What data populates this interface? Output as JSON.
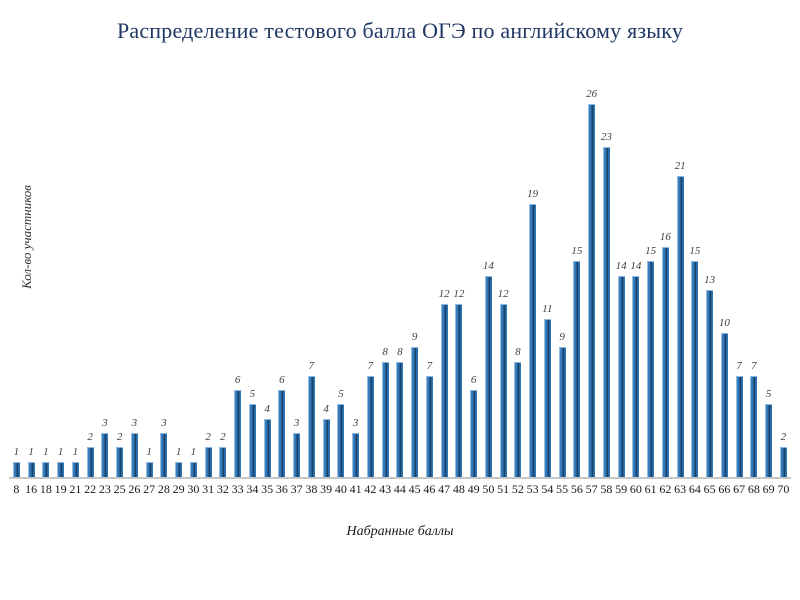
{
  "chart_data": {
    "type": "bar",
    "title": "Распределение тестового балла ОГЭ по английскому языку",
    "xlabel": "Набранные баллы",
    "ylabel": "Кол-во участников",
    "categories": [
      "8",
      "16",
      "18",
      "19",
      "21",
      "22",
      "23",
      "25",
      "26",
      "27",
      "28",
      "29",
      "30",
      "31",
      "32",
      "33",
      "34",
      "35",
      "36",
      "37",
      "38",
      "39",
      "40",
      "41",
      "42",
      "43",
      "44",
      "45",
      "46",
      "47",
      "48",
      "49",
      "50",
      "51",
      "52",
      "53",
      "54",
      "55",
      "56",
      "57",
      "58",
      "59",
      "60",
      "61",
      "62",
      "63",
      "64",
      "65",
      "66",
      "67",
      "68",
      "69",
      "70"
    ],
    "values": [
      1,
      1,
      1,
      1,
      1,
      2,
      3,
      2,
      3,
      1,
      3,
      1,
      1,
      2,
      2,
      6,
      5,
      4,
      6,
      3,
      7,
      4,
      5,
      3,
      7,
      8,
      8,
      9,
      7,
      12,
      12,
      6,
      14,
      12,
      8,
      19,
      11,
      9,
      15,
      26,
      23,
      14,
      14,
      15,
      16,
      21,
      15,
      13,
      10,
      7,
      7,
      5,
      2
    ],
    "ylim": [
      0,
      26
    ],
    "grid": "off",
    "legend": "none",
    "data_labels": "above-bars, italic",
    "colors": {
      "title": "#1F3864",
      "bar_main": "#2E75B6",
      "bar_dark": "#1F4E79",
      "bar_light": "#9DC3E6",
      "axis_line": "#C6C6C6",
      "value_label": "#404040",
      "tick_label": "#1a1a1a"
    }
  }
}
